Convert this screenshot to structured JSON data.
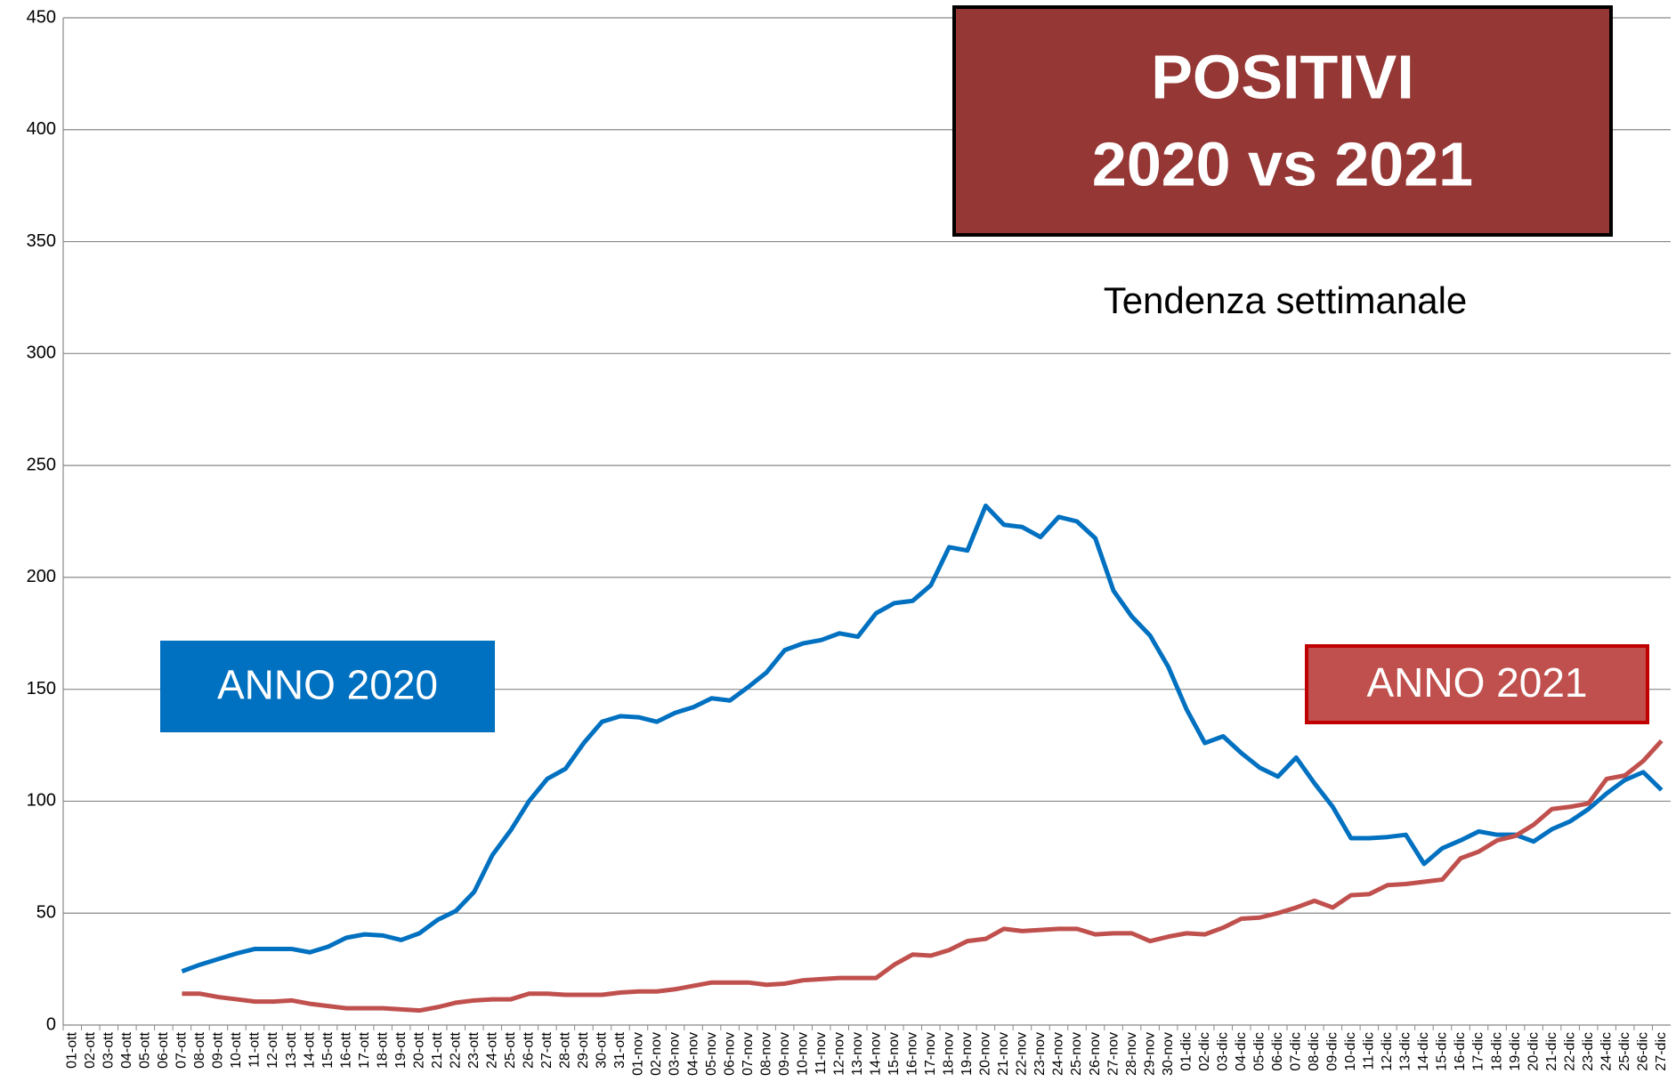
{
  "chart_data": {
    "type": "line",
    "title": [
      "POSITIVI",
      "2020 vs 2021"
    ],
    "subtitle": "Tendenza settimanale",
    "categories": [
      "01-ott",
      "02-ott",
      "03-ott",
      "04-ott",
      "05-ott",
      "06-ott",
      "07-ott",
      "08-ott",
      "09-ott",
      "10-ott",
      "11-ott",
      "12-ott",
      "13-ott",
      "14-ott",
      "15-ott",
      "16-ott",
      "17-ott",
      "18-ott",
      "19-ott",
      "20-ott",
      "21-ott",
      "22-ott",
      "23-ott",
      "24-ott",
      "25-ott",
      "26-ott",
      "27-ott",
      "28-ott",
      "29-ott",
      "30-ott",
      "31-ott",
      "01-nov",
      "02-nov",
      "03-nov",
      "04-nov",
      "05-nov",
      "06-nov",
      "07-nov",
      "08-nov",
      "09-nov",
      "10-nov",
      "11-nov",
      "12-nov",
      "13-nov",
      "14-nov",
      "15-nov",
      "16-nov",
      "17-nov",
      "18-nov",
      "19-nov",
      "20-nov",
      "21-nov",
      "22-nov",
      "23-nov",
      "24-nov",
      "25-nov",
      "26-nov",
      "27-nov",
      "28-nov",
      "29-nov",
      "30-nov",
      "01-dic",
      "02-dic",
      "03-dic",
      "04-dic",
      "05-dic",
      "06-dic",
      "07-dic",
      "08-dic",
      "09-dic",
      "10-dic",
      "11-dic",
      "12-dic",
      "13-dic",
      "14-dic",
      "15-dic",
      "16-dic",
      "17-dic",
      "18-dic",
      "19-dic",
      "20-dic",
      "21-dic",
      "22-dic",
      "23-dic",
      "24-dic",
      "25-dic",
      "26-dic",
      "27-dic"
    ],
    "series": [
      {
        "name": "ANNO 2020",
        "color": "#0070c0",
        "values": [
          null,
          null,
          null,
          null,
          null,
          null,
          24,
          27,
          29.5,
          32,
          34,
          34,
          34,
          32.5,
          35,
          39,
          40.5,
          40,
          38,
          41,
          47,
          51,
          59.5,
          76,
          87,
          100,
          110,
          114.5,
          126,
          135.5,
          138,
          137.5,
          135.5,
          139.5,
          142,
          146,
          145,
          151,
          157.5,
          167.5,
          170.5,
          172,
          175,
          173.5,
          184,
          188.5,
          189.5,
          196.5,
          213.5,
          212,
          232,
          223.5,
          222.5,
          218,
          227,
          225,
          217.5,
          194,
          182.5,
          174,
          160,
          141,
          126,
          129,
          121.5,
          115,
          111,
          119.5,
          108,
          97.5,
          83.5,
          83.5,
          84,
          85,
          72,
          79,
          82.5,
          86.5,
          85,
          85,
          82,
          87.5,
          91,
          96.5,
          103.5,
          109.5,
          113,
          105
        ]
      },
      {
        "name": "ANNO 2021",
        "color": "#c0504d",
        "values": [
          null,
          null,
          null,
          null,
          null,
          null,
          14,
          14,
          12.5,
          11.5,
          10.5,
          10.5,
          11,
          9.5,
          8.5,
          7.5,
          7.5,
          7.5,
          7,
          6.5,
          8,
          10,
          11,
          11.5,
          11.5,
          14,
          14,
          13.5,
          13.5,
          13.5,
          14.5,
          15,
          15,
          16,
          17.5,
          19,
          19,
          19,
          18,
          18.5,
          20,
          20.5,
          21,
          21,
          21,
          27,
          31.5,
          31,
          33.5,
          37.5,
          38.5,
          43,
          42,
          42.5,
          43,
          43,
          40.5,
          41,
          41,
          37.5,
          39.5,
          41,
          40.5,
          43.5,
          47.5,
          48,
          50,
          52.5,
          55.5,
          52.5,
          58,
          58.5,
          62.5,
          63,
          64,
          65,
          74.5,
          77.5,
          82.5,
          84.5,
          89.5,
          96.5,
          97.5,
          99,
          110,
          111.5,
          118,
          127
        ]
      }
    ],
    "ylim": [
      0,
      450
    ],
    "yticks": [
      0,
      50,
      100,
      150,
      200,
      250,
      300,
      350,
      400,
      450
    ],
    "grid": true
  }
}
